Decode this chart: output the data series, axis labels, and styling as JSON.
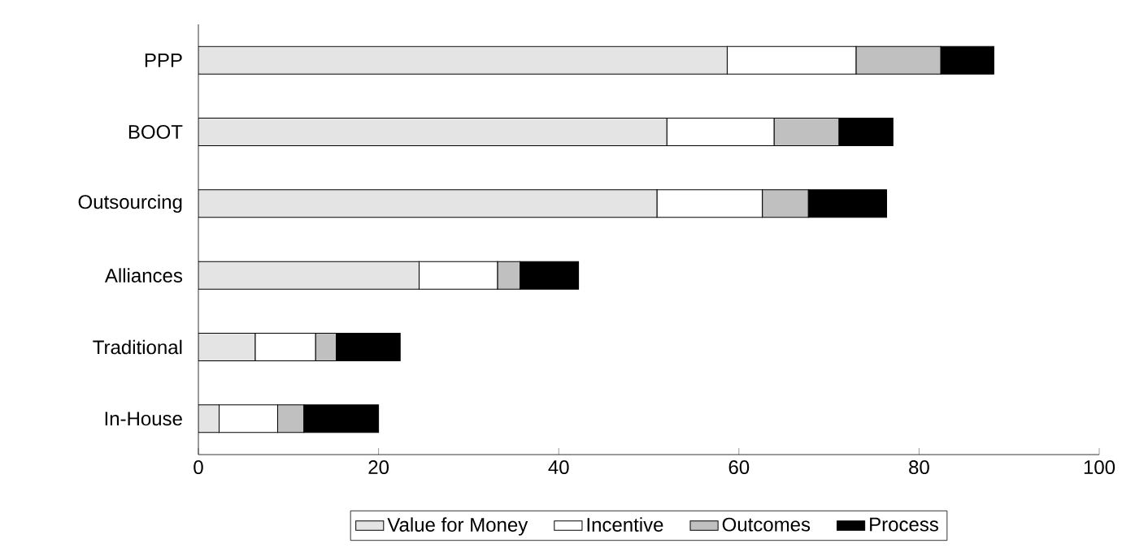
{
  "chart_data": {
    "type": "bar",
    "orientation": "horizontal",
    "stacked": true,
    "categories": [
      "PPP",
      "BOOT",
      "Outsourcing",
      "Alliances",
      "Traditional",
      "In-House"
    ],
    "series": [
      {
        "name": "Value for Money",
        "color": "#e4e4e4",
        "values": [
          58.7,
          52,
          50.9,
          24.5,
          6.3,
          2.3
        ]
      },
      {
        "name": "Incentive",
        "color": "#ffffff",
        "values": [
          14.3,
          11.9,
          11.7,
          8.7,
          6.7,
          6.5
        ]
      },
      {
        "name": "Outcomes",
        "color": "#c0c0c0",
        "values": [
          9.4,
          7.2,
          5.1,
          2.5,
          2.3,
          2.9
        ]
      },
      {
        "name": "Process",
        "color": "#000000",
        "values": [
          5.9,
          6,
          8.7,
          6.5,
          7.1,
          8.3
        ]
      }
    ],
    "xlim": [
      0,
      100
    ],
    "xticks": [
      0,
      20,
      40,
      60,
      80,
      100
    ],
    "legend": "bottom"
  }
}
